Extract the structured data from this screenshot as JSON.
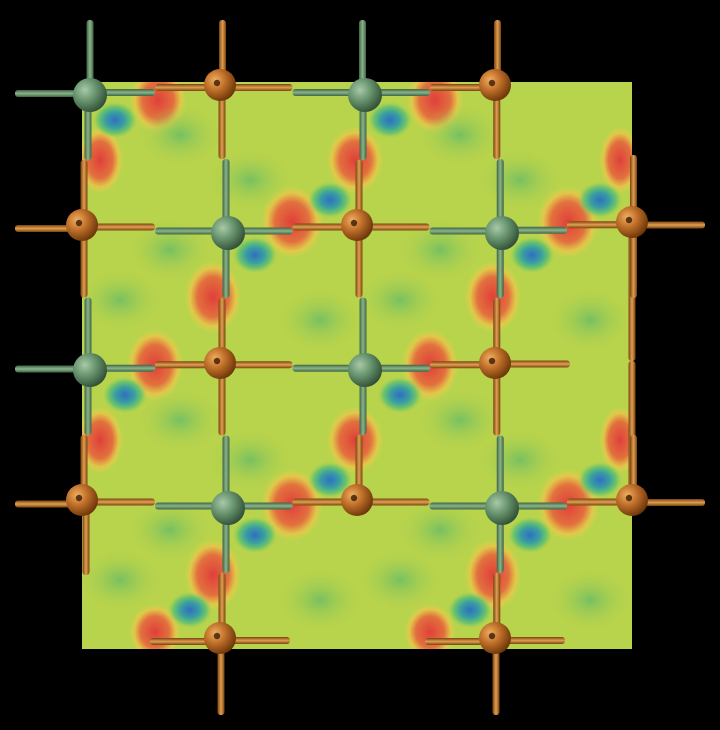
{
  "scene": {
    "description_name": "crystal-lattice-density-slice",
    "colors": {
      "background": "#000000",
      "plane_base": "#b5d24a",
      "density_high": "#e0413a",
      "density_mid": "#e8d84a",
      "density_low": "#3a8cc8",
      "density_green": "#6cc06a",
      "atom_green": "#5e8a62",
      "bond_green": "#6f9a6e",
      "atom_orange": "#b5651d",
      "bond_orange": "#c07a2a"
    },
    "icons": {
      "green_atom": "sphere-green",
      "orange_atom": "sphere-orange",
      "bond": "cylinder-rod"
    }
  }
}
